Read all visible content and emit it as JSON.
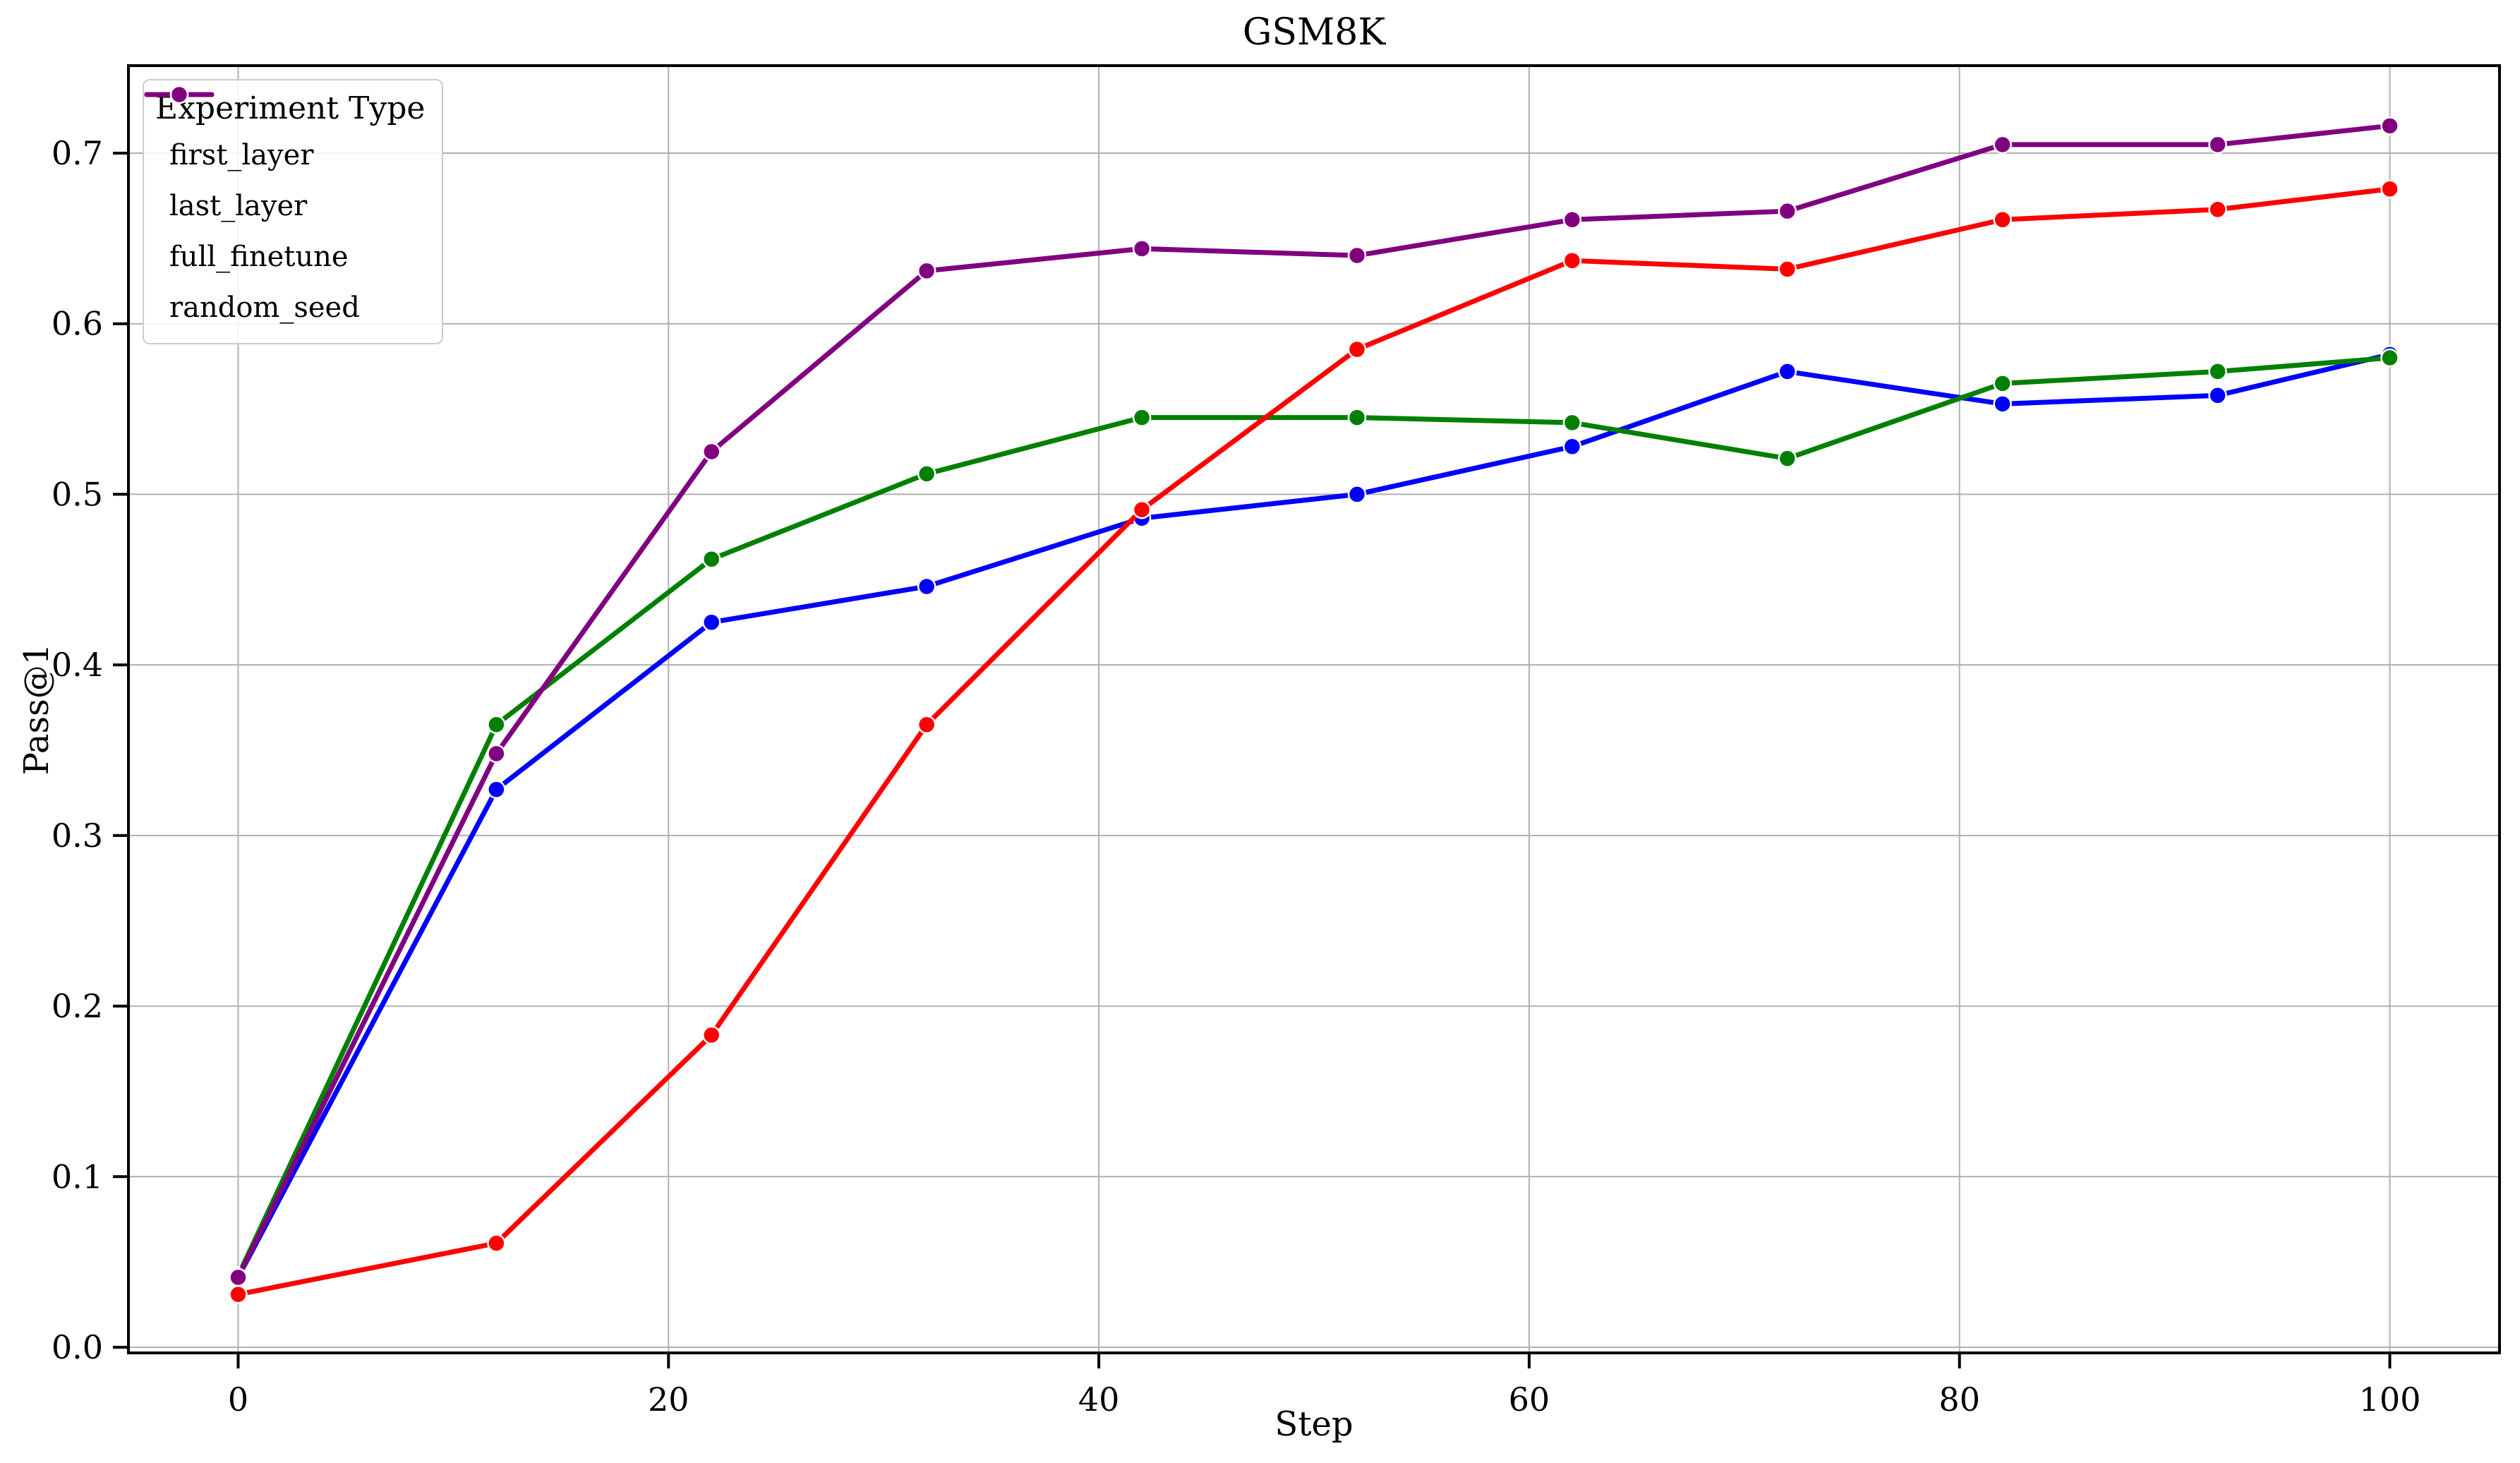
{
  "figure": {
    "background": "#ffffff"
  },
  "chart_data": {
    "type": "line",
    "title": "GSM8K",
    "xlabel": "Step",
    "ylabel": "Pass@1",
    "grid": true,
    "legend": {
      "title": "Experiment Type",
      "position": "upper left"
    },
    "x": [
      0,
      12,
      22,
      32,
      42,
      52,
      62,
      72,
      82,
      92,
      100
    ],
    "xticks": [
      0,
      20,
      40,
      60,
      80,
      100
    ],
    "yticks": [
      0.0,
      0.1,
      0.2,
      0.3,
      0.4,
      0.5,
      0.6,
      0.7
    ],
    "ytick_labels": [
      "0.0",
      "0.1",
      "0.2",
      "0.3",
      "0.4",
      "0.5",
      "0.6",
      "0.7"
    ],
    "xlim": [
      -5.1,
      105.1
    ],
    "ylim": [
      -0.0033,
      0.7513
    ],
    "axis_color": "#000000",
    "grid_color": "#b0b0b0",
    "series": [
      {
        "name": "first_layer",
        "color": "#0000ff",
        "values": [
          0.041,
          0.327,
          0.425,
          0.446,
          0.486,
          0.5,
          0.528,
          0.572,
          0.553,
          0.558,
          0.582
        ]
      },
      {
        "name": "last_layer",
        "color": "#008000",
        "values": [
          0.042,
          0.365,
          0.462,
          0.512,
          0.545,
          0.545,
          0.542,
          0.521,
          0.565,
          0.572,
          0.58
        ]
      },
      {
        "name": "full_finetune",
        "color": "#ff0000",
        "values": [
          0.031,
          0.061,
          0.183,
          0.365,
          0.491,
          0.585,
          0.637,
          0.632,
          0.661,
          0.667,
          0.679
        ]
      },
      {
        "name": "random_seed",
        "color": "#800080",
        "values": [
          0.041,
          0.348,
          0.525,
          0.631,
          0.644,
          0.64,
          0.661,
          0.666,
          0.705,
          0.705,
          0.716
        ]
      }
    ]
  }
}
